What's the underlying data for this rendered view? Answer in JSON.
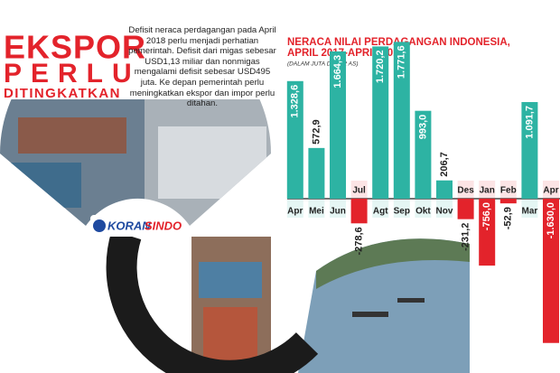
{
  "header": {
    "title_line1": "EKSPOR",
    "title_line2": "PERLU",
    "title_line3": "DITINGKATKAN",
    "paragraph": "Defisit neraca perdagangan pada April 2018 perlu menjadi perhatian pemerintah. Defisit dari migas sebesar USD1,13 miliar dan nonmigas mengalami defisit sebesar USD495 juta. Ke depan pemerintah perlu meningkatkan ekspor dan impor perlu ditahan.",
    "logo_part1": "KORAN",
    "logo_part2": "SINDO"
  },
  "chart_data": {
    "type": "bar",
    "title": "NERACA NILAI PERDAGANGAN INDONESIA, APRIL 2017-APRIL 2018",
    "subtitle": "(DALAM JUTA DOLAR AS)",
    "categories": [
      "Apr",
      "Mei",
      "Jun",
      "Jul",
      "Agt",
      "Sep",
      "Okt",
      "Nov",
      "Des",
      "Jan",
      "Feb",
      "Mar",
      "Apr"
    ],
    "values": [
      1328.6,
      572.9,
      1664.3,
      -278.6,
      1720.2,
      1771.6,
      993.0,
      206.7,
      -231.2,
      -756.0,
      -52.9,
      1091.7,
      -1630.0
    ],
    "value_labels": [
      "1.328,6",
      "572,9",
      "1.664,3",
      "-278,6",
      "1.720,2",
      "1.771,6",
      "993,0",
      "206,7",
      "-231,2",
      "-756,0",
      "-52,9",
      "1.091,7",
      "-1.630,0"
    ],
    "positive_color": "#2db3a3",
    "negative_color": "#e3232b"
  }
}
